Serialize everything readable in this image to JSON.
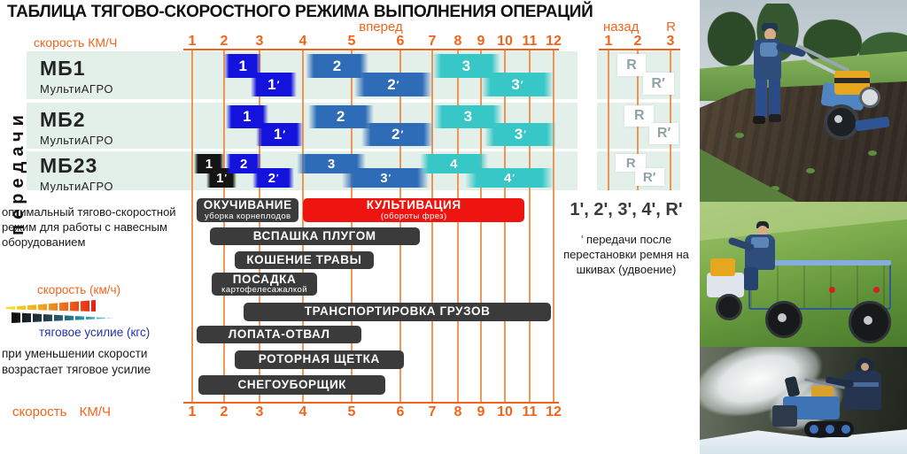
{
  "title": "ТАБЛИЦА ТЯГОВО-СКОРОСТНОГО РЕЖИМА ВЫПОЛНЕНИЯ ОПЕРАЦИЙ",
  "left_axis_label": "передачи",
  "axis": {
    "speed_label_top": "скорость КМ/Ч",
    "speed_label_bottom": "скорость КМ/Ч",
    "forward_label": "вперед",
    "reverse_label": "назад",
    "reverse_letter": "R",
    "forward_ticks": [
      "1",
      "2",
      "3",
      "4",
      "5",
      "6",
      "7",
      "8",
      "9",
      "10",
      "11",
      "12"
    ],
    "reverse_ticks": [
      "1",
      "2",
      "3"
    ]
  },
  "colors": {
    "orange": "#f2641c",
    "grid": "#f0823a",
    "band": "#e3f0ea",
    "bright_blue": "#1313dd",
    "mid_blue": "#2e6cb8",
    "cyan": "#38c7c7",
    "black_bar": "#141414",
    "op_dark": "#3b3b3b",
    "op_red": "#ee1510",
    "reverse_text": "#8fa3a3"
  },
  "chart_data": {
    "type": "gantt",
    "title": "ТАБЛИЦА ТЯГОВО-СКОРОСТНОГО РЕЖИМА ВЫПОЛНЕНИЯ ОПЕРАЦИЙ",
    "xlabel": "скорость КМ/Ч",
    "x_axis": {
      "unit": "КМ/Ч",
      "forward_range": [
        1,
        12
      ],
      "reverse_range": [
        1,
        3
      ],
      "scale": "non-linear (compressed toward high speeds)"
    },
    "rows": [
      {
        "model": "МБ1",
        "brand": "МультиАГРО",
        "gears": [
          {
            "label": "1",
            "from": 2.0,
            "to": 3.05,
            "color": "bright_blue",
            "lane": 0
          },
          {
            "label": "1'",
            "from": 2.75,
            "to": 3.85,
            "color": "bright_blue",
            "lane": 1
          },
          {
            "label": "2",
            "from": 4.05,
            "to": 5.35,
            "color": "mid_blue",
            "lane": 0
          },
          {
            "label": "2'",
            "from": 5.05,
            "to": 7.0,
            "color": "mid_blue",
            "lane": 1
          },
          {
            "label": "3",
            "from": 7.0,
            "to": 9.8,
            "color": "cyan",
            "lane": 0
          },
          {
            "label": "3'",
            "from": 9.0,
            "to": 12.0,
            "color": "cyan",
            "lane": 1
          }
        ],
        "reverse": [
          {
            "label": "R",
            "from": 1.3,
            "to": 2.25,
            "lane": 0
          },
          {
            "label": "R'",
            "from": 2.15,
            "to": 3.1,
            "lane": 1
          }
        ]
      },
      {
        "model": "МБ2",
        "brand": "МультиАГРО",
        "gears": [
          {
            "label": "1",
            "from": 2.05,
            "to": 3.2,
            "color": "bright_blue",
            "lane": 0
          },
          {
            "label": "1'",
            "from": 2.9,
            "to": 4.0,
            "color": "bright_blue",
            "lane": 1
          },
          {
            "label": "2",
            "from": 4.1,
            "to": 5.45,
            "color": "mid_blue",
            "lane": 0
          },
          {
            "label": "2'",
            "from": 5.2,
            "to": 7.05,
            "color": "mid_blue",
            "lane": 1
          },
          {
            "label": "3",
            "from": 7.05,
            "to": 9.9,
            "color": "cyan",
            "lane": 0
          },
          {
            "label": "3'",
            "from": 9.15,
            "to": 12.1,
            "color": "cyan",
            "lane": 1
          }
        ],
        "reverse": [
          {
            "label": "R",
            "from": 1.55,
            "to": 2.5,
            "lane": 0
          },
          {
            "label": "R'",
            "from": 2.35,
            "to": 3.25,
            "lane": 1
          }
        ]
      },
      {
        "model": "МБ23",
        "brand": "МультиАГРО",
        "gears": [
          {
            "label": "1",
            "from": 1.05,
            "to": 2.0,
            "color": "black_bar",
            "lane": 0
          },
          {
            "label": "1'",
            "from": 1.45,
            "to": 2.35,
            "color": "black_bar",
            "lane": 1
          },
          {
            "label": "2",
            "from": 2.05,
            "to": 3.05,
            "color": "bright_blue",
            "lane": 0
          },
          {
            "label": "2'",
            "from": 2.8,
            "to": 3.8,
            "color": "bright_blue",
            "lane": 1
          },
          {
            "label": "3",
            "from": 3.85,
            "to": 5.3,
            "color": "mid_blue",
            "lane": 0
          },
          {
            "label": "3'",
            "from": 4.8,
            "to": 6.9,
            "color": "mid_blue",
            "lane": 1
          },
          {
            "label": "4",
            "from": 6.6,
            "to": 9.3,
            "color": "cyan",
            "lane": 0
          },
          {
            "label": "4'",
            "from": 8.3,
            "to": 12.0,
            "color": "cyan",
            "lane": 1
          }
        ],
        "reverse": [
          {
            "label": "R",
            "from": 1.25,
            "to": 2.25,
            "lane": 0
          },
          {
            "label": "R'",
            "from": 1.9,
            "to": 2.8,
            "lane": 1
          }
        ]
      }
    ],
    "operations": [
      {
        "label": "ОКУЧИВАНИЕ",
        "sub": "уборка корнеплодов",
        "from": 1.15,
        "to": 3.9,
        "color": "op_dark",
        "line": 0
      },
      {
        "label": "КУЛЬТИВАЦИЯ",
        "sub": "(обороты фрез)",
        "from": 4.0,
        "to": 10.8,
        "color": "op_red",
        "line": 0
      },
      {
        "label": "ВСПАШКА ПЛУГОМ",
        "from": 1.55,
        "to": 6.6,
        "color": "op_dark",
        "line": 1
      },
      {
        "label": "КОШЕНИЕ ТРАВЫ",
        "from": 2.3,
        "to": 5.45,
        "color": "op_dark",
        "line": 2
      },
      {
        "label": "ПОСАДКА",
        "sub": "картофелесажалкой",
        "from": 1.6,
        "to": 4.3,
        "color": "op_dark",
        "line": 3
      },
      {
        "label": "ТРАНСПОРТИРОВКА ГРУЗОВ",
        "from": 2.55,
        "to": 11.9,
        "color": "op_dark",
        "line": 4
      },
      {
        "label": "ЛОПАТА-ОТВАЛ",
        "from": 1.15,
        "to": 5.2,
        "color": "op_dark",
        "line": 5
      },
      {
        "label": "РОТОРНАЯ ЩЕТКА",
        "from": 2.3,
        "to": 6.1,
        "color": "op_dark",
        "line": 6
      },
      {
        "label": "СНЕГОУБОРЩИК",
        "from": 1.2,
        "to": 5.7,
        "color": "op_dark",
        "line": 7
      }
    ]
  },
  "left_notes": {
    "optimal": "оптимальный тягово-скоростной режим для работы с навесным оборудованием",
    "speed_arrow": "скорость (км/ч)",
    "traction_arrow": "тяговое усилие (кгс)",
    "traction_note": "при уменьшении скорости возрастает тяговое усилие"
  },
  "right_note": {
    "primed_gears": "1',  2',  3',  4',  R'",
    "tick": "'",
    "text": "передачи после перестановки ремня на шкивах (удвоение)"
  },
  "photos": [
    {
      "name": "tilling-photo"
    },
    {
      "name": "cargo-transport-photo"
    },
    {
      "name": "snow-blower-photo"
    }
  ]
}
